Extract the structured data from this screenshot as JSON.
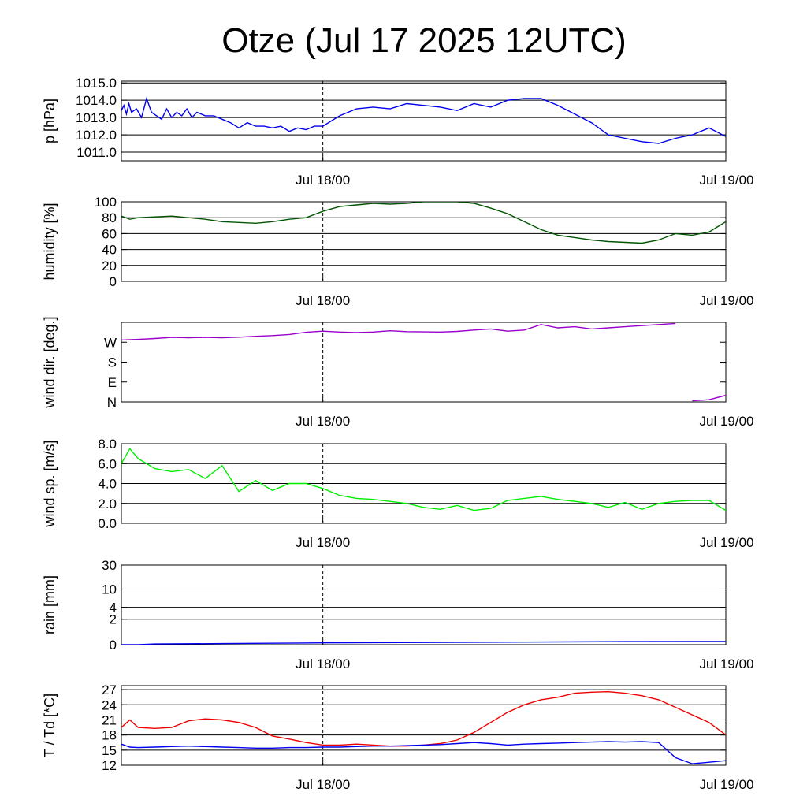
{
  "title": "Otze (Jul 17 2025 12UTC)",
  "x_tick_labels": [
    "Jul 18/00",
    "Jul 19/00"
  ],
  "chart_data": [
    {
      "type": "line",
      "ylabel": "p [hPa]",
      "ylim": [
        1010.5,
        1015.1
      ],
      "yticks": [
        1015.0,
        1014.0,
        1013.0,
        1012.0,
        1011.0
      ],
      "ytick_labels": [
        "1015.0",
        "1014.0",
        "1013.0",
        "1012.0",
        "1011.0"
      ],
      "grid": true,
      "series": [
        {
          "color": "#0000ee",
          "x": [
            0,
            0.15,
            0.3,
            0.45,
            0.6,
            0.9,
            1.2,
            1.5,
            1.8,
            2.1,
            2.4,
            2.7,
            3.0,
            3.3,
            3.6,
            3.9,
            4.2,
            4.5,
            5.0,
            5.5,
            6.0,
            6.5,
            7.0,
            7.5,
            8.0,
            8.5,
            9.0,
            9.5,
            10.0,
            10.5,
            11.0,
            11.5,
            12.0,
            13,
            14,
            15,
            16,
            17,
            18,
            19,
            20,
            21,
            22,
            23,
            24,
            25,
            26,
            27,
            28,
            29,
            30,
            31,
            32,
            33,
            34,
            35,
            36
          ],
          "y": [
            1013.4,
            1013.7,
            1013.2,
            1013.8,
            1013.3,
            1013.5,
            1013.0,
            1014.1,
            1013.3,
            1013.1,
            1012.9,
            1013.5,
            1013.0,
            1013.3,
            1013.1,
            1013.5,
            1013.0,
            1013.3,
            1013.1,
            1013.1,
            1012.9,
            1012.7,
            1012.4,
            1012.7,
            1012.5,
            1012.5,
            1012.4,
            1012.5,
            1012.2,
            1012.4,
            1012.3,
            1012.5,
            1012.5,
            1013.1,
            1013.5,
            1013.6,
            1013.5,
            1013.8,
            1013.7,
            1013.6,
            1013.4,
            1013.8,
            1013.6,
            1014.0,
            1014.1,
            1014.1,
            1013.7,
            1013.2,
            1012.7,
            1012.0,
            1011.8,
            1011.6,
            1011.5,
            1011.8,
            1012.0,
            1012.4,
            1011.9
          ]
        }
      ]
    },
    {
      "type": "line",
      "ylabel": "humidity [%]",
      "ylim": [
        0,
        100
      ],
      "yticks": [
        100,
        80,
        60,
        40,
        20,
        0
      ],
      "ytick_labels": [
        "100",
        "80",
        "60",
        "40",
        "20",
        "0"
      ],
      "grid": true,
      "series": [
        {
          "color": "#005500",
          "x": [
            0,
            0.5,
            1,
            2,
            3,
            4,
            5,
            6,
            7,
            8,
            9,
            10,
            11,
            12,
            13,
            14,
            15,
            16,
            17,
            18,
            19,
            20,
            21,
            22,
            23,
            24,
            25,
            26,
            27,
            28,
            29,
            30,
            31,
            32,
            33,
            34,
            35,
            36
          ],
          "y": [
            82,
            78,
            80,
            81,
            82,
            80,
            78,
            75,
            74,
            73,
            75,
            78,
            80,
            88,
            94,
            96,
            98,
            97,
            98,
            100,
            100,
            100,
            98,
            92,
            85,
            75,
            65,
            58,
            55,
            52,
            50,
            49,
            48,
            52,
            60,
            58,
            62,
            75
          ]
        }
      ]
    },
    {
      "type": "line",
      "ylabel": "wind dir. [deg.]",
      "ylim": [
        0,
        360
      ],
      "yticks": [
        270,
        180,
        90,
        0
      ],
      "ytick_labels": [
        "W",
        "S",
        "E",
        "N"
      ],
      "grid": false,
      "series": [
        {
          "color": "#9900cc",
          "x": [
            0,
            1,
            2,
            3,
            4,
            5,
            6,
            7,
            8,
            9,
            10,
            11,
            12,
            13,
            14,
            15,
            16,
            17,
            18,
            19,
            20,
            21,
            22,
            23,
            24,
            25,
            26,
            27,
            28,
            29,
            30,
            31,
            32,
            33,
            34,
            35,
            36
          ],
          "y": [
            280,
            283,
            287,
            292,
            290,
            292,
            290,
            293,
            297,
            300,
            305,
            315,
            320,
            316,
            314,
            316,
            322,
            318,
            317,
            316,
            319,
            325,
            330,
            320,
            325,
            350,
            335,
            340,
            330,
            335,
            340,
            345,
            350,
            355,
            5,
            10,
            30
          ]
        }
      ]
    },
    {
      "type": "line",
      "ylabel": "wind sp. [m/s]",
      "ylim": [
        0,
        8
      ],
      "yticks": [
        8.0,
        6.0,
        4.0,
        2.0,
        0.0
      ],
      "ytick_labels": [
        "8.0",
        "6.0",
        "4.0",
        "2.0",
        "0.0"
      ],
      "grid": true,
      "series": [
        {
          "color": "#00ee00",
          "x": [
            0,
            0.5,
            1,
            2,
            3,
            4,
            5,
            6,
            7,
            8,
            9,
            10,
            11,
            12,
            13,
            14,
            15,
            16,
            17,
            18,
            19,
            20,
            21,
            22,
            23,
            24,
            25,
            26,
            27,
            28,
            29,
            30,
            31,
            32,
            33,
            34,
            35,
            36
          ],
          "y": [
            6.0,
            7.5,
            6.5,
            5.5,
            5.2,
            5.4,
            4.5,
            5.8,
            3.2,
            4.3,
            3.3,
            4.0,
            4.0,
            3.5,
            2.8,
            2.5,
            2.4,
            2.2,
            2.0,
            1.6,
            1.4,
            1.8,
            1.3,
            1.5,
            2.3,
            2.5,
            2.7,
            2.4,
            2.2,
            2.0,
            1.6,
            2.1,
            1.4,
            2.0,
            2.2,
            2.3,
            2.3,
            1.3
          ]
        }
      ]
    },
    {
      "type": "line",
      "ylabel": "rain [mm]",
      "ylim": [
        0,
        30
      ],
      "yticks": [
        30,
        10,
        4,
        2,
        0
      ],
      "ytick_labels": [
        "30",
        "10",
        "4",
        "2",
        "0"
      ],
      "scale": "symlog",
      "grid": true,
      "series": [
        {
          "color": "#0000ee",
          "x": [
            0,
            1,
            2,
            6,
            12,
            18,
            24,
            30,
            36
          ],
          "y": [
            0,
            0,
            0.03,
            0.05,
            0.08,
            0.1,
            0.12,
            0.14,
            0.15
          ]
        }
      ]
    },
    {
      "type": "line",
      "ylabel": "T / Td [*C]",
      "ylim": [
        12,
        27.8
      ],
      "yticks": [
        27,
        24,
        21,
        18,
        15,
        12
      ],
      "ytick_labels": [
        "27",
        "24",
        "21",
        "18",
        "15",
        "12"
      ],
      "grid": true,
      "series": [
        {
          "name": "T",
          "color": "#ee0000",
          "x": [
            0,
            0.5,
            1,
            2,
            3,
            4,
            5,
            6,
            7,
            8,
            9,
            10,
            11,
            12,
            13,
            14,
            15,
            16,
            17,
            18,
            19,
            20,
            21,
            22,
            23,
            24,
            25,
            26,
            27,
            28,
            29,
            30,
            31,
            32,
            33,
            34,
            35,
            36
          ],
          "y": [
            19.5,
            21.0,
            19.5,
            19.3,
            19.5,
            20.8,
            21.2,
            21.0,
            20.5,
            19.5,
            17.8,
            17.2,
            16.5,
            16.0,
            16.0,
            16.2,
            16.0,
            15.8,
            15.8,
            16.0,
            16.3,
            17.0,
            18.5,
            20.5,
            22.5,
            24.0,
            25.0,
            25.5,
            26.3,
            26.5,
            26.6,
            26.3,
            25.8,
            25.0,
            23.5,
            22.0,
            20.5,
            18.0
          ]
        },
        {
          "name": "Td",
          "color": "#0000ee",
          "x": [
            0,
            0.5,
            1,
            2,
            3,
            4,
            5,
            6,
            7,
            8,
            9,
            10,
            11,
            12,
            13,
            14,
            15,
            16,
            17,
            18,
            19,
            20,
            21,
            22,
            23,
            24,
            25,
            26,
            27,
            28,
            29,
            30,
            31,
            32,
            33,
            34,
            35,
            36
          ],
          "y": [
            16.2,
            15.6,
            15.5,
            15.6,
            15.7,
            15.8,
            15.7,
            15.6,
            15.5,
            15.4,
            15.4,
            15.5,
            15.5,
            15.6,
            15.6,
            15.7,
            15.8,
            15.8,
            15.9,
            16.0,
            16.1,
            16.3,
            16.5,
            16.3,
            16.0,
            16.2,
            16.3,
            16.4,
            16.5,
            16.6,
            16.7,
            16.6,
            16.7,
            16.5,
            13.5,
            12.3,
            12.6,
            12.9
          ]
        }
      ]
    }
  ]
}
